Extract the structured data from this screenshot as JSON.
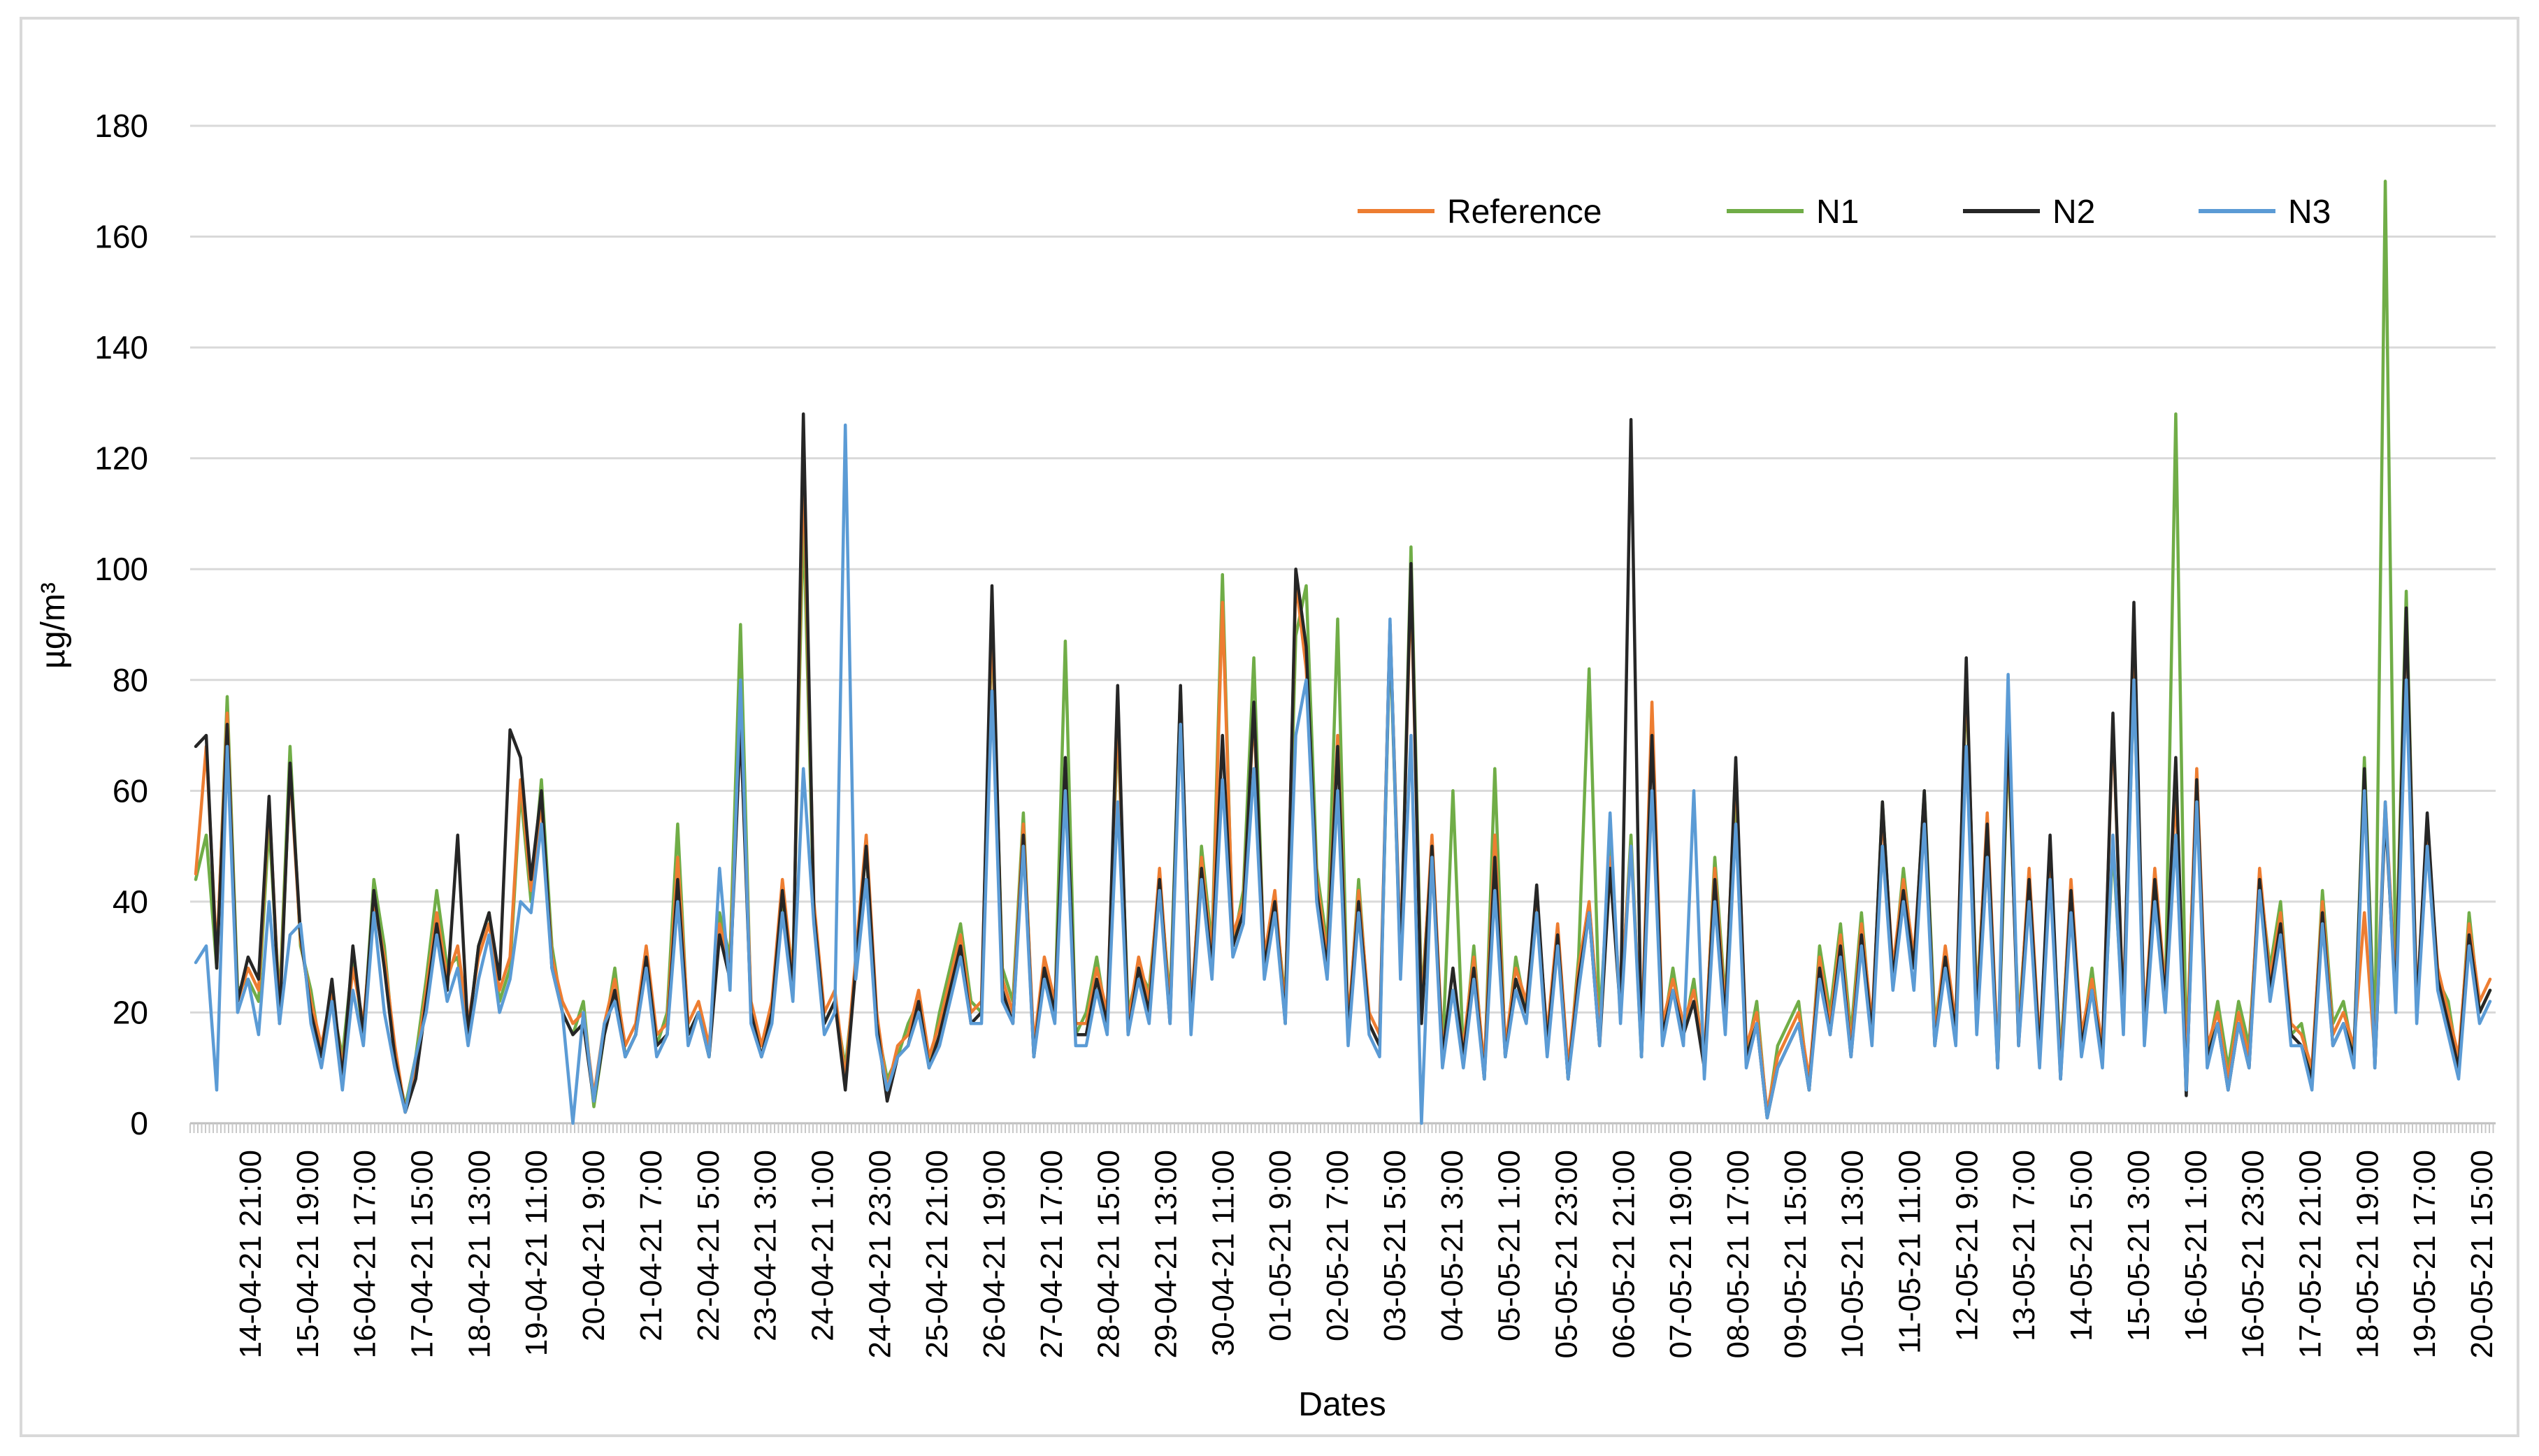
{
  "chart_data": {
    "type": "line",
    "title": "",
    "xlabel": "Dates",
    "ylabel": "µg/m³",
    "ylim": [
      0,
      180
    ],
    "y_ticks": [
      0,
      20,
      40,
      60,
      80,
      100,
      120,
      140,
      160,
      180
    ],
    "grid": true,
    "legend_position": "top-right",
    "x_tick_labels": [
      "14-04-21 21:00",
      "15-04-21 19:00",
      "16-04-21 17:00",
      "17-04-21 15:00",
      "18-04-21 13:00",
      "19-04-21 11:00",
      "20-04-21 9:00",
      "21-04-21 7:00",
      "22-04-21 5:00",
      "23-04-21 3:00",
      "24-04-21 1:00",
      "24-04-21 23:00",
      "25-04-21 21:00",
      "26-04-21 19:00",
      "27-04-21 17:00",
      "28-04-21 15:00",
      "29-04-21 13:00",
      "30-04-21 11:00",
      "01-05-21 9:00",
      "02-05-21 7:00",
      "03-05-21 5:00",
      "04-05-21 3:00",
      "05-05-21 1:00",
      "05-05-21 23:00",
      "06-05-21 21:00",
      "07-05-21 19:00",
      "08-05-21 17:00",
      "09-05-21 15:00",
      "10-05-21 13:00",
      "11-05-21 11:00",
      "12-05-21 9:00",
      "13-05-21 7:00",
      "14-05-21 5:00",
      "15-05-21 3:00",
      "16-05-21 1:00",
      "16-05-21 23:00",
      "17-05-21 21:00",
      "18-05-21 19:00",
      "19-05-21 17:00",
      "20-05-21 15:00"
    ],
    "series": [
      {
        "name": "Reference",
        "color": "#ed7d31",
        "values": [
          45,
          68,
          30,
          74,
          22,
          28,
          24,
          58,
          20,
          64,
          33,
          22,
          14,
          24,
          10,
          28,
          18,
          40,
          30,
          14,
          2,
          10,
          24,
          38,
          26,
          32,
          18,
          30,
          36,
          24,
          30,
          62,
          42,
          58,
          30,
          22,
          18,
          20,
          5,
          18,
          26,
          14,
          18,
          32,
          16,
          18,
          48,
          18,
          22,
          14,
          36,
          28,
          76,
          22,
          14,
          22,
          44,
          26,
          120,
          40,
          20,
          24,
          8,
          30,
          52,
          20,
          6,
          14,
          16,
          24,
          12,
          18,
          26,
          34,
          20,
          22,
          92,
          26,
          20,
          54,
          14,
          30,
          22,
          62,
          18,
          18,
          28,
          20,
          74,
          18,
          30,
          22,
          46,
          20,
          76,
          20,
          48,
          30,
          94,
          34,
          40,
          74,
          30,
          42,
          20,
          98,
          82,
          44,
          30,
          70,
          18,
          42,
          20,
          16,
          90,
          30,
          98,
          20,
          52,
          14,
          24,
          14,
          30,
          10,
          52,
          14,
          28,
          22,
          40,
          16,
          36,
          10,
          28,
          40,
          16,
          48,
          22,
          50,
          14,
          76,
          18,
          26,
          18,
          24,
          12,
          46,
          20,
          64,
          14,
          20,
          2,
          12,
          16,
          20,
          8,
          30,
          18,
          34,
          14,
          36,
          18,
          56,
          28,
          44,
          30,
          58,
          16,
          32,
          18,
          82,
          20,
          56,
          12,
          70,
          16,
          46,
          14,
          48,
          10,
          44,
          16,
          26,
          14,
          72,
          20,
          88,
          18,
          46,
          24,
          60,
          10,
          64,
          14,
          20,
          8,
          20,
          12,
          46,
          26,
          38,
          18,
          16,
          10,
          40,
          16,
          20,
          14,
          38,
          12,
          58,
          24,
          92,
          22,
          52,
          28,
          20,
          12,
          36,
          22,
          26
        ]
      },
      {
        "name": "N1",
        "color": "#70ad47",
        "values": [
          44,
          52,
          28,
          77,
          24,
          26,
          22,
          54,
          22,
          68,
          32,
          24,
          12,
          22,
          12,
          30,
          16,
          44,
          32,
          12,
          3,
          12,
          26,
          42,
          28,
          30,
          16,
          32,
          38,
          22,
          28,
          60,
          40,
          62,
          32,
          20,
          16,
          22,
          3,
          16,
          28,
          12,
          16,
          30,
          14,
          20,
          54,
          16,
          20,
          12,
          38,
          30,
          90,
          20,
          12,
          20,
          40,
          28,
          110,
          38,
          18,
          22,
          10,
          28,
          50,
          18,
          8,
          12,
          18,
          22,
          10,
          20,
          28,
          36,
          22,
          20,
          90,
          28,
          22,
          56,
          12,
          28,
          20,
          87,
          16,
          20,
          30,
          18,
          72,
          20,
          28,
          24,
          44,
          22,
          78,
          18,
          50,
          32,
          99,
          32,
          42,
          84,
          28,
          40,
          22,
          88,
          97,
          46,
          32,
          91,
          16,
          44,
          18,
          14,
          88,
          28,
          104,
          22,
          50,
          12,
          60,
          12,
          32,
          8,
          64,
          12,
          30,
          20,
          42,
          14,
          34,
          8,
          30,
          82,
          18,
          50,
          20,
          52,
          12,
          74,
          16,
          28,
          16,
          26,
          10,
          48,
          22,
          60,
          12,
          22,
          1,
          14,
          18,
          22,
          6,
          32,
          20,
          36,
          16,
          38,
          16,
          58,
          26,
          46,
          28,
          60,
          18,
          30,
          16,
          80,
          22,
          54,
          10,
          68,
          18,
          44,
          12,
          46,
          12,
          42,
          14,
          28,
          12,
          50,
          18,
          80,
          16,
          44,
          22,
          128,
          12,
          62,
          12,
          22,
          10,
          22,
          14,
          44,
          28,
          40,
          16,
          18,
          8,
          42,
          18,
          22,
          12,
          66,
          14,
          170,
          26,
          96,
          20,
          54,
          26,
          22,
          10,
          38,
          20,
          24
        ]
      },
      {
        "name": "N2",
        "color": "#262626",
        "values": [
          68,
          70,
          28,
          72,
          22,
          30,
          26,
          59,
          18,
          65,
          34,
          20,
          12,
          26,
          8,
          32,
          16,
          42,
          28,
          12,
          2,
          8,
          22,
          36,
          24,
          52,
          16,
          32,
          38,
          26,
          71,
          66,
          44,
          60,
          28,
          20,
          16,
          18,
          4,
          16,
          24,
          12,
          16,
          30,
          14,
          16,
          44,
          16,
          20,
          12,
          34,
          26,
          72,
          20,
          12,
          20,
          42,
          24,
          128,
          38,
          18,
          22,
          6,
          28,
          50,
          18,
          4,
          12,
          14,
          22,
          10,
          16,
          24,
          32,
          18,
          20,
          97,
          24,
          18,
          52,
          12,
          28,
          20,
          66,
          16,
          16,
          26,
          18,
          79,
          16,
          28,
          20,
          44,
          18,
          79,
          18,
          46,
          28,
          70,
          32,
          38,
          76,
          28,
          40,
          18,
          100,
          86,
          42,
          28,
          68,
          16,
          40,
          18,
          14,
          90,
          28,
          101,
          18,
          50,
          12,
          28,
          12,
          28,
          8,
          48,
          12,
          26,
          20,
          43,
          14,
          34,
          8,
          26,
          38,
          14,
          46,
          20,
          127,
          12,
          70,
          16,
          24,
          16,
          22,
          10,
          44,
          18,
          66,
          12,
          18,
          1,
          10,
          14,
          18,
          6,
          28,
          16,
          32,
          12,
          34,
          16,
          58,
          26,
          42,
          28,
          60,
          14,
          30,
          16,
          84,
          18,
          54,
          10,
          72,
          14,
          44,
          12,
          52,
          8,
          42,
          14,
          24,
          12,
          74,
          18,
          94,
          16,
          44,
          22,
          66,
          5,
          62,
          12,
          18,
          6,
          18,
          10,
          44,
          24,
          36,
          16,
          14,
          8,
          38,
          14,
          18,
          12,
          64,
          10,
          56,
          22,
          93,
          20,
          56,
          26,
          18,
          10,
          34,
          20,
          24
        ]
      },
      {
        "name": "N3",
        "color": "#5b9bd5",
        "values": [
          29,
          32,
          6,
          68,
          20,
          26,
          16,
          40,
          18,
          34,
          36,
          18,
          10,
          22,
          6,
          24,
          14,
          38,
          20,
          10,
          2,
          12,
          20,
          34,
          22,
          28,
          14,
          26,
          34,
          20,
          26,
          40,
          38,
          54,
          28,
          20,
          0,
          20,
          4,
          18,
          22,
          12,
          16,
          28,
          12,
          16,
          40,
          14,
          20,
          12,
          46,
          24,
          80,
          18,
          12,
          18,
          38,
          22,
          64,
          36,
          16,
          20,
          126,
          26,
          44,
          16,
          6,
          12,
          14,
          20,
          10,
          14,
          22,
          30,
          18,
          18,
          78,
          22,
          18,
          50,
          12,
          26,
          18,
          60,
          14,
          14,
          24,
          16,
          58,
          16,
          26,
          18,
          42,
          18,
          72,
          16,
          44,
          26,
          62,
          30,
          36,
          64,
          26,
          38,
          18,
          70,
          80,
          40,
          26,
          60,
          14,
          38,
          16,
          12,
          91,
          26,
          70,
          0,
          48,
          10,
          24,
          10,
          26,
          8,
          42,
          12,
          24,
          18,
          38,
          12,
          32,
          8,
          24,
          38,
          14,
          56,
          18,
          50,
          12,
          60,
          14,
          24,
          14,
          60,
          8,
          40,
          16,
          54,
          10,
          18,
          1,
          10,
          14,
          18,
          6,
          26,
          16,
          30,
          12,
          32,
          14,
          50,
          24,
          40,
          24,
          54,
          14,
          28,
          14,
          68,
          16,
          48,
          10,
          81,
          14,
          40,
          10,
          44,
          8,
          38,
          12,
          24,
          10,
          52,
          16,
          80,
          14,
          40,
          20,
          52,
          6,
          58,
          10,
          18,
          6,
          18,
          10,
          42,
          22,
          34,
          14,
          14,
          6,
          36,
          14,
          18,
          10,
          60,
          10,
          58,
          20,
          80,
          18,
          50,
          24,
          16,
          8,
          32,
          18,
          22
        ]
      }
    ]
  }
}
